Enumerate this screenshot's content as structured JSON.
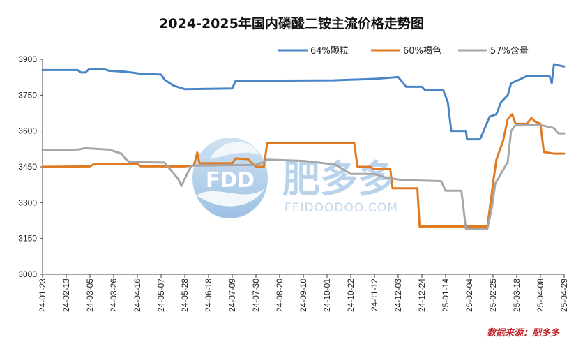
{
  "chart_data": {
    "type": "line",
    "title": "2024-2025年国内磷酸二铵主流价格走势图",
    "xlabel": "",
    "ylabel": "",
    "ylim": [
      3000,
      3900
    ],
    "yticks": [
      3000,
      3150,
      3300,
      3450,
      3600,
      3750,
      3900
    ],
    "x_ticks": [
      "24-01-23",
      "24-02-13",
      "24-03-05",
      "24-03-26",
      "24-04-16",
      "24-05-07",
      "24-05-28",
      "24-06-18",
      "24-07-09",
      "24-07-30",
      "24-08-20",
      "24-09-10",
      "24-10-01",
      "24-10-22",
      "24-11-12",
      "24-12-03",
      "24-12-24",
      "25-01-14",
      "25-02-04",
      "25-02-25",
      "25-03-18",
      "25-04-08",
      "25-04-29"
    ],
    "x_start": "2024-01-23",
    "x_end": "2025-04-29",
    "legend_position": "top-right",
    "grid": false,
    "series": [
      {
        "name": "64%颗粒",
        "color": "#4a86c5",
        "points": [
          [
            "2024-01-23",
            3855
          ],
          [
            "2024-02-23",
            3855
          ],
          [
            "2024-02-26",
            3845
          ],
          [
            "2024-03-01",
            3845
          ],
          [
            "2024-03-04",
            3858
          ],
          [
            "2024-03-18",
            3858
          ],
          [
            "2024-03-22",
            3852
          ],
          [
            "2024-04-05",
            3848
          ],
          [
            "2024-04-18",
            3840
          ],
          [
            "2024-05-07",
            3836
          ],
          [
            "2024-05-10",
            3815
          ],
          [
            "2024-05-18",
            3790
          ],
          [
            "2024-05-28",
            3775
          ],
          [
            "2024-07-09",
            3778
          ],
          [
            "2024-07-12",
            3810
          ],
          [
            "2024-10-07",
            3812
          ],
          [
            "2024-11-12",
            3818
          ],
          [
            "2024-12-03",
            3826
          ],
          [
            "2024-12-10",
            3785
          ],
          [
            "2024-12-24",
            3785
          ],
          [
            "2024-12-27",
            3770
          ],
          [
            "2025-01-12",
            3770
          ],
          [
            "2025-01-16",
            3720
          ],
          [
            "2025-01-19",
            3600
          ],
          [
            "2025-02-01",
            3600
          ],
          [
            "2025-02-02",
            3565
          ],
          [
            "2025-02-12",
            3565
          ],
          [
            "2025-02-14",
            3570
          ],
          [
            "2025-02-22",
            3660
          ],
          [
            "2025-02-28",
            3670
          ],
          [
            "2025-03-04",
            3720
          ],
          [
            "2025-03-10",
            3750
          ],
          [
            "2025-03-13",
            3800
          ],
          [
            "2025-03-18",
            3810
          ],
          [
            "2025-03-27",
            3830
          ],
          [
            "2025-04-16",
            3830
          ],
          [
            "2025-04-18",
            3800
          ],
          [
            "2025-04-20",
            3880
          ],
          [
            "2025-04-24",
            3875
          ],
          [
            "2025-04-29",
            3870
          ]
        ]
      },
      {
        "name": "60%褐色",
        "color": "#e07a22",
        "points": [
          [
            "2024-01-23",
            3450
          ],
          [
            "2024-03-05",
            3452
          ],
          [
            "2024-03-08",
            3460
          ],
          [
            "2024-04-16",
            3462
          ],
          [
            "2024-04-19",
            3452
          ],
          [
            "2024-05-28",
            3452
          ],
          [
            "2024-06-05",
            3455
          ],
          [
            "2024-06-08",
            3510
          ],
          [
            "2024-06-10",
            3465
          ],
          [
            "2024-07-09",
            3465
          ],
          [
            "2024-07-12",
            3485
          ],
          [
            "2024-07-23",
            3482
          ],
          [
            "2024-07-30",
            3450
          ],
          [
            "2024-08-06",
            3450
          ],
          [
            "2024-08-09",
            3550
          ],
          [
            "2024-10-25",
            3550
          ],
          [
            "2024-10-28",
            3450
          ],
          [
            "2024-11-08",
            3450
          ],
          [
            "2024-11-12",
            3440
          ],
          [
            "2024-11-26",
            3440
          ],
          [
            "2024-11-28",
            3360
          ],
          [
            "2024-12-20",
            3360
          ],
          [
            "2024-12-22",
            3200
          ],
          [
            "2025-02-20",
            3200
          ],
          [
            "2025-02-25",
            3380
          ],
          [
            "2025-02-28",
            3480
          ],
          [
            "2025-03-03",
            3520
          ],
          [
            "2025-03-06",
            3560
          ],
          [
            "2025-03-10",
            3650
          ],
          [
            "2025-03-14",
            3670
          ],
          [
            "2025-03-17",
            3630
          ],
          [
            "2025-03-27",
            3630
          ],
          [
            "2025-03-31",
            3655
          ],
          [
            "2025-04-03",
            3640
          ],
          [
            "2025-04-08",
            3630
          ],
          [
            "2025-04-11",
            3512
          ],
          [
            "2025-04-20",
            3505
          ],
          [
            "2025-04-29",
            3505
          ]
        ]
      },
      {
        "name": "57%含量",
        "color": "#a6a6a6",
        "points": [
          [
            "2024-01-23",
            3520
          ],
          [
            "2024-02-23",
            3522
          ],
          [
            "2024-03-01",
            3528
          ],
          [
            "2024-03-22",
            3522
          ],
          [
            "2024-04-02",
            3505
          ],
          [
            "2024-04-05",
            3485
          ],
          [
            "2024-04-09",
            3470
          ],
          [
            "2024-05-10",
            3468
          ],
          [
            "2024-05-14",
            3445
          ],
          [
            "2024-05-22",
            3400
          ],
          [
            "2024-05-25",
            3370
          ],
          [
            "2024-05-30",
            3420
          ],
          [
            "2024-06-03",
            3455
          ],
          [
            "2024-07-30",
            3458
          ],
          [
            "2024-08-06",
            3470
          ],
          [
            "2024-08-09",
            3480
          ],
          [
            "2024-09-10",
            3475
          ],
          [
            "2024-10-08",
            3460
          ],
          [
            "2024-10-22",
            3420
          ],
          [
            "2024-11-12",
            3420
          ],
          [
            "2024-11-22",
            3405
          ],
          [
            "2024-12-06",
            3395
          ],
          [
            "2025-01-10",
            3390
          ],
          [
            "2025-01-14",
            3350
          ],
          [
            "2025-01-28",
            3350
          ],
          [
            "2025-02-01",
            3190
          ],
          [
            "2025-02-20",
            3190
          ],
          [
            "2025-02-24",
            3280
          ],
          [
            "2025-02-27",
            3380
          ],
          [
            "2025-03-10",
            3470
          ],
          [
            "2025-03-13",
            3600
          ],
          [
            "2025-03-17",
            3625
          ],
          [
            "2025-04-08",
            3625
          ],
          [
            "2025-04-20",
            3612
          ],
          [
            "2025-04-24",
            3590
          ],
          [
            "2025-04-29",
            3590
          ]
        ]
      }
    ]
  },
  "watermark": {
    "logo_text": "FDD",
    "brand": "肥多多",
    "domain": "FEIDOODOO.COM"
  },
  "source_label": "数据来源：肥多多"
}
